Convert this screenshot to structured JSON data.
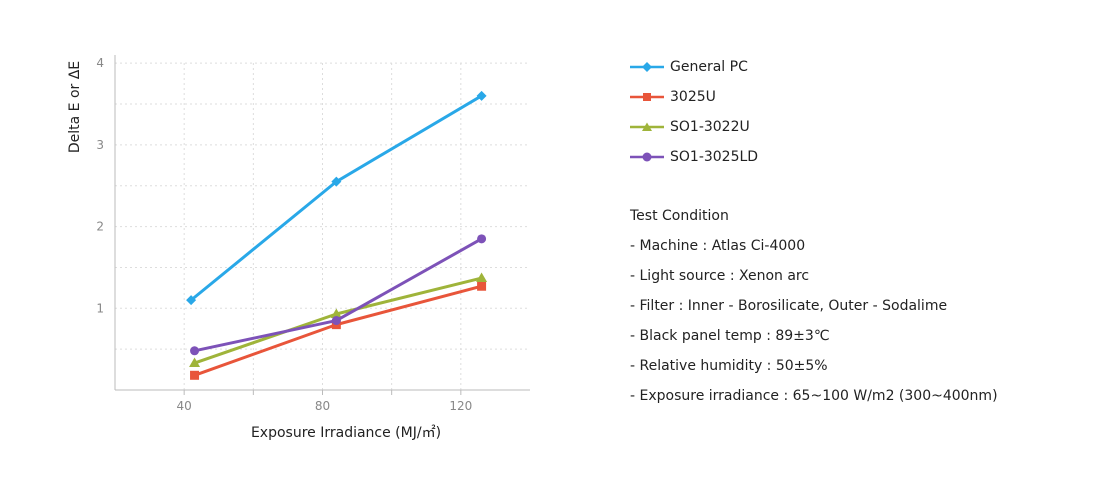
{
  "chart_data": {
    "type": "line",
    "xlabel": "Exposure Irradiance (MJ/㎡)",
    "ylabel": "Delta E or ΔE",
    "xlim": [
      20,
      140
    ],
    "ylim": [
      0,
      4.1
    ],
    "x_ticks": [
      40,
      80,
      120
    ],
    "y_ticks": [
      1,
      2,
      3,
      4
    ],
    "grid": true,
    "legend_position": "right",
    "series": [
      {
        "name": "General PC",
        "color": "#29a8e8",
        "marker": "diamond",
        "x": [
          42,
          84,
          126
        ],
        "y": [
          1.1,
          2.55,
          3.6
        ]
      },
      {
        "name": "3025U",
        "color": "#e8553a",
        "marker": "square",
        "x": [
          43,
          84,
          126
        ],
        "y": [
          0.18,
          0.8,
          1.27
        ]
      },
      {
        "name": "SO1-3022U",
        "color": "#9fb43a",
        "marker": "triangle",
        "x": [
          43,
          84,
          126
        ],
        "y": [
          0.33,
          0.93,
          1.37
        ]
      },
      {
        "name": "SO1-3025LD",
        "color": "#7d52b8",
        "marker": "circle",
        "x": [
          43,
          84,
          126
        ],
        "y": [
          0.48,
          0.85,
          1.85
        ]
      }
    ]
  },
  "conditions": {
    "title": "Test Condition",
    "lines": [
      "- Machine : Atlas Ci-4000",
      "- Light source : Xenon arc",
      "- Filter : Inner - Borosilicate, Outer - Sodalime",
      "- Black panel temp : 89±3℃",
      "- Relative humidity : 50±5%",
      "- Exposure irradiance : 65~100 W/m2 (300~400nm)"
    ]
  }
}
